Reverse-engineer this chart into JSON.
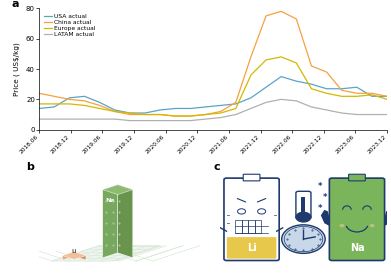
{
  "title_a": "a",
  "title_b": "b",
  "title_c": "c",
  "ylabel": "Price ( US$/kg)",
  "ylim": [
    0,
    80
  ],
  "yticks": [
    0,
    20,
    40,
    60,
    80
  ],
  "xtick_labels": [
    "2018.06",
    "2018.12",
    "2019.06",
    "2019.12",
    "2020.06",
    "2020.12",
    "2021.06",
    "2021.12",
    "2022.06",
    "2022.12",
    "2023.06",
    "2023.12"
  ],
  "colors": {
    "USA": "#5ba3c9",
    "China": "#f5a142",
    "Europe": "#d4b800",
    "LATAM": "#b0b0b0"
  },
  "USA": [
    14,
    15,
    21,
    22,
    18,
    13,
    11,
    11,
    13,
    14,
    14,
    15,
    16,
    17,
    21,
    28,
    35,
    32,
    30,
    27,
    27,
    28,
    22,
    22
  ],
  "China": [
    24,
    22,
    20,
    19,
    16,
    12,
    10,
    10,
    10,
    9,
    9,
    10,
    12,
    18,
    48,
    75,
    78,
    73,
    42,
    38,
    26,
    24,
    24,
    22
  ],
  "Europe": [
    17,
    17,
    17,
    16,
    14,
    12,
    11,
    10,
    10,
    9,
    9,
    10,
    11,
    14,
    36,
    46,
    48,
    44,
    27,
    24,
    22,
    22,
    23,
    20
  ],
  "LATAM": [
    7,
    7,
    7,
    7,
    7,
    7,
    6,
    6,
    6,
    6,
    6,
    7,
    8,
    10,
    14,
    18,
    20,
    19,
    15,
    13,
    11,
    10,
    10,
    10
  ],
  "dark_blue": "#1e3a6e",
  "li_yellow": "#e8c84a",
  "na_green": "#7ab55c",
  "li_color_top": "#f0c09a",
  "li_color_left": "#e8a878",
  "li_color_right": "#d49060",
  "na_color_top": "#8fba72",
  "na_color_left": "#78a85e",
  "na_color_right": "#68944e",
  "grid_color": "#d8e8d8",
  "floor_color": "#eef4ee"
}
